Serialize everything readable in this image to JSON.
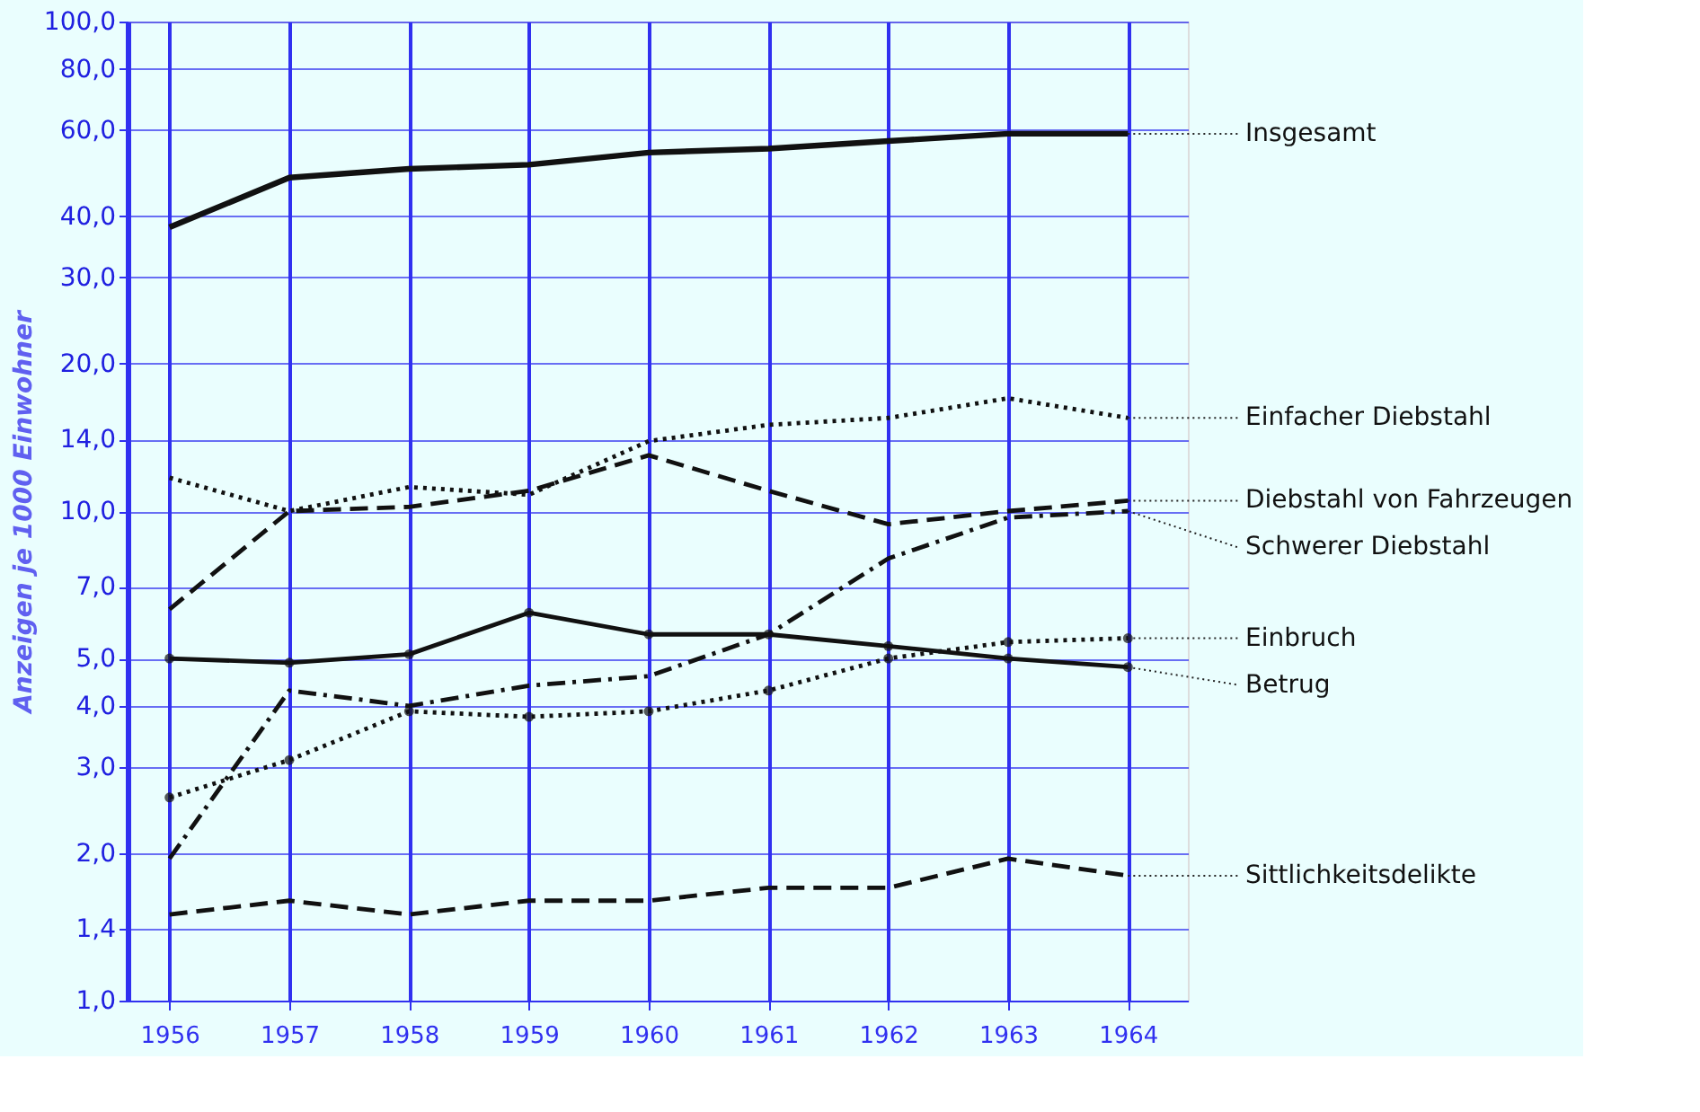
{
  "chart_data": {
    "type": "line",
    "ylabel": "Anzeigen je 1000 Einwohner",
    "x": [
      1956,
      1957,
      1958,
      1959,
      1960,
      1961,
      1962,
      1963,
      1964
    ],
    "xlim": [
      1955.65,
      1964.5
    ],
    "xticks": [
      1956,
      1957,
      1958,
      1959,
      1960,
      1961,
      1962,
      1963,
      1964
    ],
    "ylim": [
      1,
      100
    ],
    "log": true,
    "grid": true,
    "yticks": [
      {
        "value": 1,
        "label": "1,0"
      },
      {
        "value": 1.4,
        "label": "1,4"
      },
      {
        "value": 2,
        "label": "2,0"
      },
      {
        "value": 3,
        "label": "3,0"
      },
      {
        "value": 4,
        "label": "4,0"
      },
      {
        "value": 5,
        "label": "5,0"
      },
      {
        "value": 7,
        "label": "7,0"
      },
      {
        "value": 10,
        "label": "10,0"
      },
      {
        "value": 14,
        "label": "14,0"
      },
      {
        "value": 20,
        "label": "20,0"
      },
      {
        "value": 30,
        "label": "30,0"
      },
      {
        "value": 40,
        "label": "40,0"
      },
      {
        "value": 60,
        "label": "60,0"
      },
      {
        "value": 80,
        "label": "80,0"
      },
      {
        "value": 100,
        "label": "100,0"
      }
    ],
    "series": [
      {
        "name": "Insgesamt",
        "color": "#111111",
        "line_style": "solid",
        "marker": "none",
        "values": [
          38,
          48,
          50,
          51,
          54,
          55,
          57,
          59,
          59
        ]
      },
      {
        "name": "Einfacher Diebstahl",
        "color": "#111111",
        "line_style": "dotted",
        "marker": "none",
        "values": [
          11.7,
          10,
          11.2,
          10.8,
          13.9,
          15,
          15.5,
          17,
          15.5
        ]
      },
      {
        "name": "Diebstahl von Fahrzeugen",
        "color": "#111111",
        "line_style": "dashed",
        "marker": "none",
        "values": [
          6.3,
          10,
          10.2,
          11,
          13,
          11,
          9.4,
          10,
          10.5
        ]
      },
      {
        "name": "Schwerer Diebstahl",
        "color": "#111111",
        "line_style": "dashdot",
        "marker": "none",
        "values": [
          1.95,
          4.3,
          4.0,
          4.4,
          4.6,
          5.6,
          8.0,
          9.7,
          10
        ]
      },
      {
        "name": "Einbruch",
        "color": "#111111",
        "line_style": "dotted",
        "marker": "circle",
        "values": [
          2.6,
          3.1,
          3.9,
          3.8,
          3.9,
          4.3,
          5.0,
          5.4,
          5.5
        ]
      },
      {
        "name": "Betrug",
        "color": "#111111",
        "line_style": "solid",
        "marker": "circle",
        "values": [
          5.0,
          4.9,
          5.1,
          6.2,
          5.6,
          5.6,
          5.3,
          5.0,
          4.8
        ]
      },
      {
        "name": "Sittlichkeitsdelikte",
        "color": "#111111",
        "line_style": "dashed",
        "marker": "none",
        "values": [
          1.5,
          1.6,
          1.5,
          1.6,
          1.6,
          1.7,
          1.7,
          1.95,
          1.8
        ]
      }
    ]
  }
}
